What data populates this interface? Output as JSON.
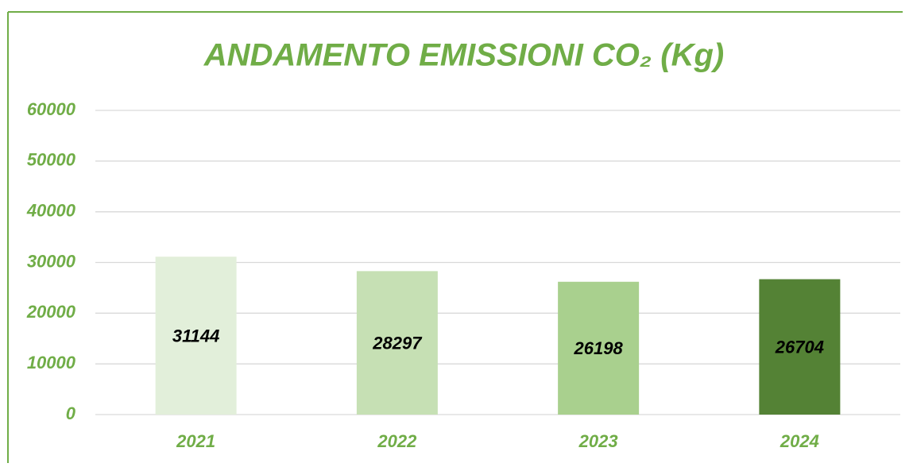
{
  "chart_data": {
    "type": "bar",
    "title": "ANDAMENTO EMISSIONI CO₂ (Kg)",
    "categories": [
      "2021",
      "2022",
      "2023",
      "2024"
    ],
    "values": [
      31144,
      28297,
      26198,
      26704
    ],
    "colors": [
      "#e2efda",
      "#c6e0b4",
      "#a9d08e",
      "#548235"
    ],
    "ylim": [
      0,
      60000
    ],
    "yticks": [
      0,
      10000,
      20000,
      30000,
      40000,
      50000,
      60000
    ],
    "grid": true
  }
}
